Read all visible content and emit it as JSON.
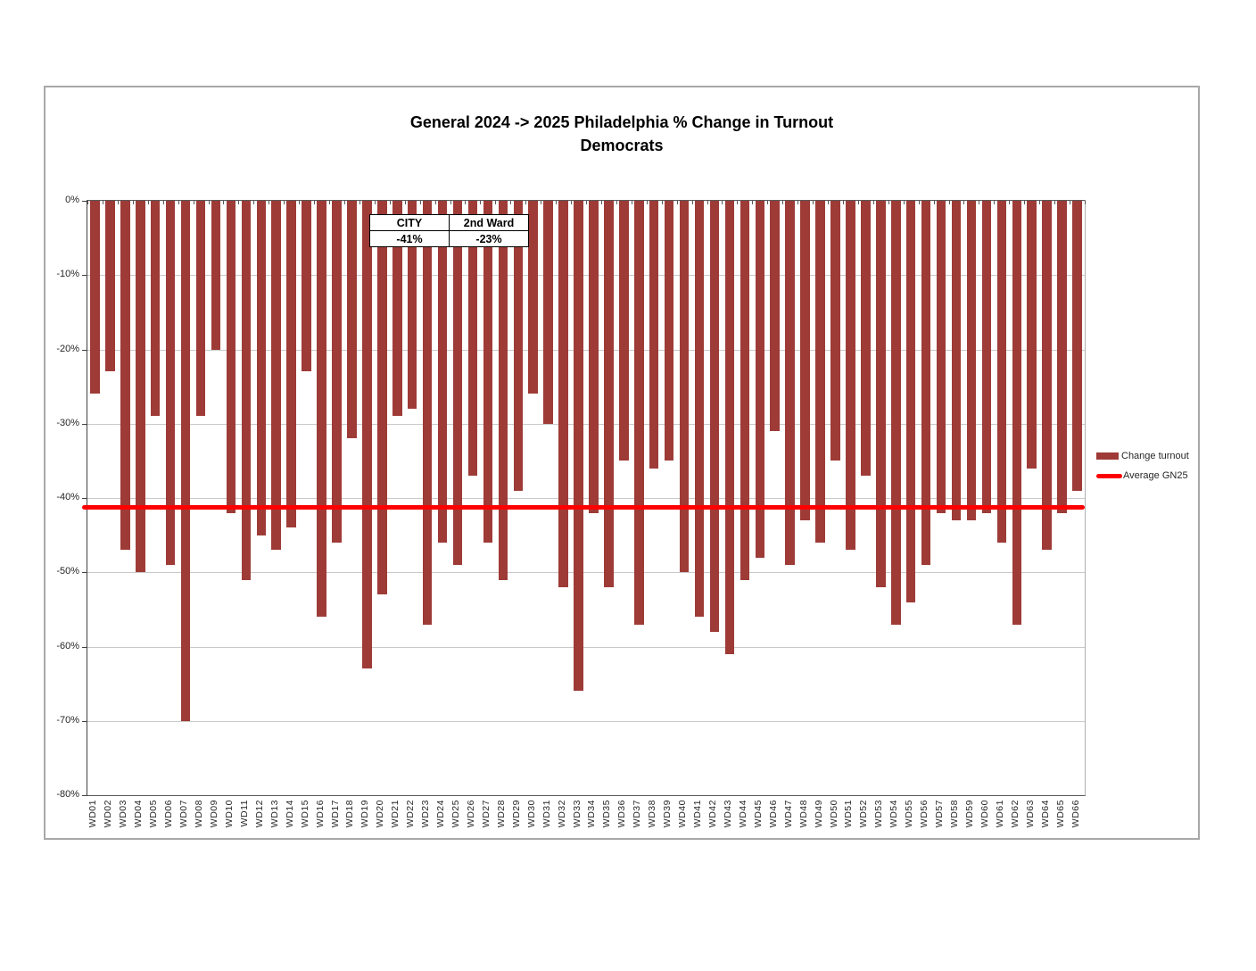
{
  "chart": {
    "title_line1": "General 2024 -> 2025 Philadelphia % Change in Turnout",
    "title_line2": "Democrats",
    "stats_table": {
      "columns": [
        {
          "header": "CITY",
          "value": "-41%"
        },
        {
          "header": "2nd Ward",
          "value": "-23%"
        }
      ]
    },
    "legend": [
      {
        "label": "Change turnout",
        "type": "bar-swatch",
        "color": "#9e3b37"
      },
      {
        "label": "Average GN25",
        "type": "line-swatch",
        "color": "#ff0000"
      }
    ]
  },
  "chart_data": {
    "type": "bar",
    "title": "General 2024 -> 2025 Philadelphia % Change in Turnout",
    "subtitle": "Democrats",
    "categories": [
      "WD01",
      "WD02",
      "WD03",
      "WD04",
      "WD05",
      "WD06",
      "WD07",
      "WD08",
      "WD09",
      "WD10",
      "WD11",
      "WD12",
      "WD13",
      "WD14",
      "WD15",
      "WD16",
      "WD17",
      "WD18",
      "WD19",
      "WD20",
      "WD21",
      "WD22",
      "WD23",
      "WD24",
      "WD25",
      "WD26",
      "WD27",
      "WD28",
      "WD29",
      "WD30",
      "WD31",
      "WD32",
      "WD33",
      "WD34",
      "WD35",
      "WD36",
      "WD37",
      "WD38",
      "WD39",
      "WD40",
      "WD41",
      "WD42",
      "WD43",
      "WD44",
      "WD45",
      "WD46",
      "WD47",
      "WD48",
      "WD49",
      "WD50",
      "WD51",
      "WD52",
      "WD53",
      "WD54",
      "WD55",
      "WD56",
      "WD57",
      "WD58",
      "WD59",
      "WD60",
      "WD61",
      "WD62",
      "WD63",
      "WD64",
      "WD65",
      "WD66"
    ],
    "series": [
      {
        "name": "Change turnout",
        "color": "#9e3b37",
        "values": [
          -26,
          -23,
          -47,
          -50,
          -29,
          -49,
          -70,
          -29,
          -20,
          -42,
          -51,
          -45,
          -47,
          -44,
          -23,
          -56,
          -46,
          -32,
          -63,
          -53,
          -29,
          -28,
          -57,
          -46,
          -49,
          -37,
          -46,
          -51,
          -39,
          -26,
          -30,
          -52,
          -66,
          -42,
          -52,
          -35,
          -57,
          -36,
          -35,
          -50,
          -56,
          -58,
          -61,
          -51,
          -48,
          -31,
          -49,
          -43,
          -46,
          -35,
          -47,
          -37,
          -52,
          -57,
          -54,
          -49,
          -42,
          -43,
          -43,
          -42,
          -46,
          -57,
          -36,
          -47,
          -42,
          -39
        ]
      }
    ],
    "average_line": {
      "name": "Average GN25",
      "value": -41.3,
      "color": "#ff0000"
    },
    "ylim": [
      -80,
      0
    ],
    "yticks": [
      "0%",
      "-10%",
      "-20%",
      "-30%",
      "-40%",
      "-50%",
      "-60%",
      "-70%",
      "-80%"
    ],
    "ytick_values": [
      0,
      -10,
      -20,
      -30,
      -40,
      -50,
      -60,
      -70,
      -80
    ],
    "grid": true,
    "legend_position": "right"
  }
}
